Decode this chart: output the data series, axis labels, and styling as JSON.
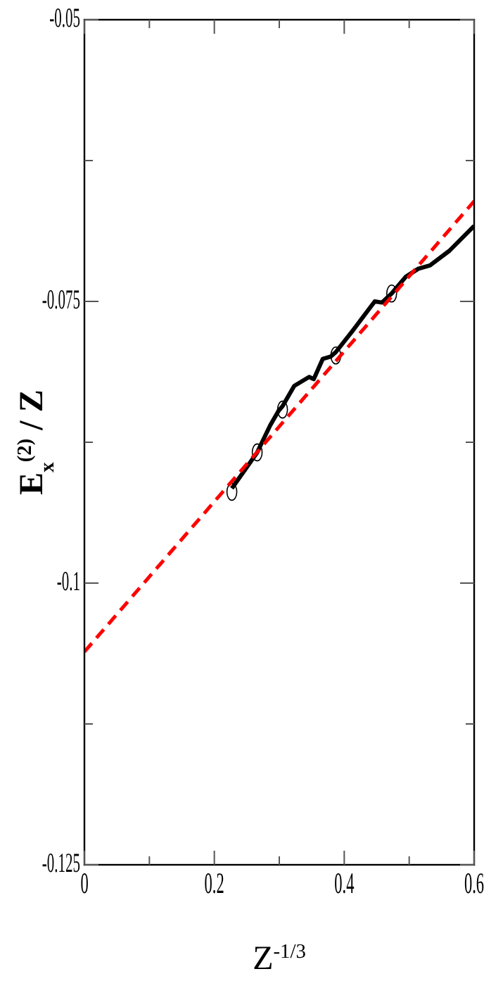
{
  "chart_data": {
    "type": "line",
    "xlabel": "Z$^{-1/3}$",
    "ylabel": "E$_{x}$$^{(2)}$ / Z",
    "xlim": [
      0,
      0.6
    ],
    "ylim": [
      -0.125,
      -0.05
    ],
    "xticks": [
      0,
      {
        "value": 0.1,
        "label": null
      },
      0.2,
      {
        "value": 0.3,
        "label": null
      },
      0.4,
      {
        "value": 0.5,
        "label": null
      },
      0.6
    ],
    "yticks": [
      -0.125,
      {
        "value": -0.1125,
        "label": null
      },
      -0.1,
      {
        "value": -0.0875,
        "label": null
      },
      -0.075,
      {
        "value": -0.0625,
        "label": null
      },
      -0.05
    ],
    "grid": false,
    "series": [
      {
        "color": "#000000",
        "line_style": "solid",
        "marker": "none",
        "x": [
          0.227,
          0.266,
          0.286,
          0.299,
          0.305,
          0.323,
          0.346,
          0.353,
          0.367,
          0.379,
          0.387,
          0.413,
          0.447,
          0.458,
          0.473,
          0.495,
          0.514,
          0.532,
          0.562,
          0.6
        ],
        "values": [
          -0.0916,
          -0.0884,
          -0.086,
          -0.0847,
          -0.0843,
          -0.0825,
          -0.0817,
          -0.0819,
          -0.0801,
          -0.0799,
          -0.0795,
          -0.0776,
          -0.075,
          -0.0751,
          -0.0743,
          -0.0728,
          -0.0721,
          -0.0718,
          -0.0705,
          -0.0683
        ]
      },
      {
        "type": "scatter",
        "color": "#000000",
        "marker": "circle",
        "x": [
          0.227,
          0.266,
          0.305,
          0.387,
          0.473
        ],
        "values": [
          -0.0919,
          -0.0884,
          -0.0846,
          -0.0798,
          -0.0743
        ]
      },
      {
        "type": "line",
        "color": "#ff0000",
        "line_style": "dashed",
        "marker": "none",
        "x": [
          0,
          0.6
        ],
        "values": [
          -0.1061,
          -0.0661
        ]
      }
    ]
  }
}
